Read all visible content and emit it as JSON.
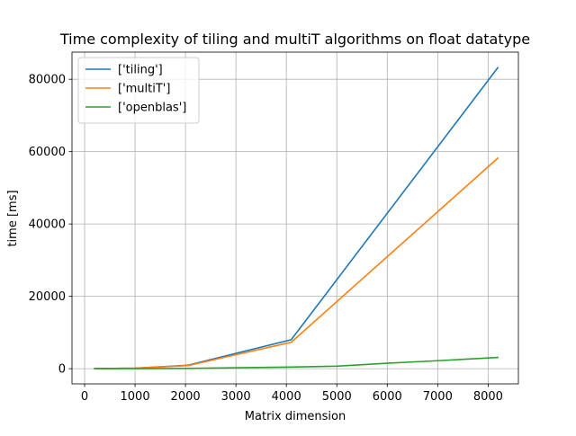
{
  "chart_data": {
    "type": "line",
    "title": "Time complexity of tiling and multiT algorithms on float datatype",
    "xlabel": "Matrix dimension",
    "ylabel": "time [ms]",
    "xlim": [
      -250,
      8600
    ],
    "ylim": [
      -4200,
      87500
    ],
    "xticks": [
      0,
      1000,
      2000,
      3000,
      4000,
      5000,
      6000,
      7000,
      8000
    ],
    "yticks": [
      0,
      20000,
      40000,
      60000,
      80000
    ],
    "grid": true,
    "legend_position": "upper-left",
    "series": [
      {
        "name": "['tiling']",
        "color": "#1f77b4",
        "x": [
          200,
          500,
          1000,
          2048,
          4096,
          8192
        ],
        "y": [
          5,
          60,
          150,
          950,
          8000,
          83200
        ]
      },
      {
        "name": "['multiT']",
        "color": "#ff7f0e",
        "x": [
          200,
          500,
          1000,
          2048,
          4096,
          8192
        ],
        "y": [
          5,
          50,
          130,
          850,
          7300,
          58200
        ]
      },
      {
        "name": "['openblas']",
        "color": "#2ca02c",
        "x": [
          200,
          500,
          1000,
          2048,
          4096,
          5000,
          6000,
          7000,
          8192
        ],
        "y": [
          2,
          5,
          20,
          80,
          450,
          700,
          1500,
          2200,
          3100
        ]
      }
    ]
  }
}
